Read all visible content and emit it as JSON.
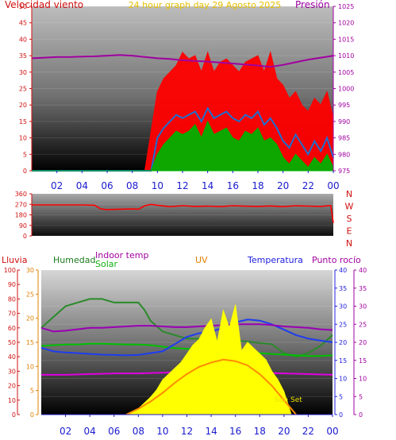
{
  "title": "24 hour graph day   29 Agosto 2025",
  "chart_data": [
    {
      "type": "line",
      "id": "wind-pressure",
      "xlabel": "",
      "x_ticks": [
        "02",
        "04",
        "06",
        "08",
        "10",
        "12",
        "14",
        "16",
        "18",
        "20",
        "22",
        "00"
      ],
      "left_axis": {
        "label": "Velocidad viento",
        "ylim": [
          0,
          50
        ],
        "ticks": [
          0,
          5,
          10,
          15,
          20,
          25,
          30,
          35,
          40,
          45,
          50
        ]
      },
      "right_axis": {
        "label": "Presión",
        "ylim": [
          975,
          1025
        ],
        "ticks": [
          975,
          980,
          985,
          990,
          995,
          1000,
          1005,
          1010,
          1015,
          1020,
          1025
        ]
      },
      "series": [
        {
          "name": "",
          "color": "#ff0000",
          "axis": "left",
          "kind": "gust",
          "x": [
            0,
            8,
            9,
            9.5,
            10,
            10.5,
            11,
            11.5,
            12,
            12.5,
            13,
            13.5,
            14,
            14.5,
            15,
            15.5,
            16,
            16.5,
            17,
            17.5,
            18,
            18.5,
            19,
            19.5,
            20,
            20.5,
            21,
            21.5,
            22,
            22.5,
            23,
            23.5,
            24
          ],
          "values": [
            0,
            0,
            0,
            12,
            24,
            28,
            30,
            32,
            36,
            34,
            35,
            30,
            36,
            30,
            33,
            34,
            32,
            30,
            33,
            34,
            35,
            30,
            36,
            28,
            26,
            22,
            24,
            20,
            18,
            22,
            20,
            24,
            16
          ]
        },
        {
          "name": "",
          "color": "#1e6fd0",
          "axis": "left",
          "kind": "line",
          "x": [
            0,
            9.5,
            10,
            10.5,
            11,
            11.5,
            12,
            12.5,
            13,
            13.5,
            14,
            14.5,
            15,
            15.5,
            16,
            16.5,
            17,
            17.5,
            18,
            18.5,
            19,
            19.5,
            20,
            20.5,
            21,
            21.5,
            22,
            22.5,
            23,
            23.5,
            24
          ],
          "values": [
            0,
            0,
            10,
            13,
            15,
            17,
            16,
            17,
            18,
            15,
            19,
            16,
            17,
            18,
            16,
            15,
            17,
            16,
            18,
            14,
            16,
            13,
            9,
            7,
            11,
            8,
            5,
            9,
            6,
            10,
            4
          ]
        },
        {
          "name": "",
          "color": "#00b000",
          "axis": "left",
          "kind": "fill",
          "x": [
            0,
            9.5,
            10,
            10.5,
            11,
            11.5,
            12,
            12.5,
            13,
            13.5,
            14,
            14.5,
            15,
            15.5,
            16,
            16.5,
            17,
            17.5,
            18,
            18.5,
            19,
            19.5,
            20,
            20.5,
            21,
            21.5,
            22,
            22.5,
            23,
            23.5,
            24
          ],
          "values": [
            0,
            0,
            5,
            8,
            10,
            12,
            11,
            12,
            14,
            10,
            15,
            11,
            12,
            13,
            10,
            9,
            12,
            11,
            13,
            9,
            10,
            8,
            4,
            2,
            5,
            3,
            1,
            4,
            2,
            5,
            1
          ]
        },
        {
          "name": "",
          "color": "#a000a0",
          "axis": "right",
          "kind": "line",
          "x": [
            0,
            1,
            2,
            3,
            4,
            5,
            6,
            7,
            8,
            9,
            10,
            11,
            12,
            13,
            14,
            15,
            16,
            17,
            18,
            19,
            20,
            21,
            22,
            23,
            24
          ],
          "values": [
            1009.2,
            1009.4,
            1009.6,
            1009.6,
            1009.7,
            1009.8,
            1010.0,
            1010.2,
            1010.0,
            1009.6,
            1009.2,
            1009.0,
            1008.6,
            1008.4,
            1008.2,
            1007.9,
            1007.6,
            1007.3,
            1007.0,
            1006.6,
            1007.2,
            1008.0,
            1008.8,
            1009.4,
            1010.0
          ]
        }
      ]
    },
    {
      "type": "line",
      "id": "wind-direction",
      "xlabel": "",
      "left_axis": {
        "label": "",
        "ylim": [
          0,
          360
        ],
        "ticks": [
          0,
          90,
          180,
          270,
          360
        ]
      },
      "right_labels": [
        "N",
        "W",
        "S",
        "E",
        "N"
      ],
      "series": [
        {
          "name": "",
          "color": "#ff0000",
          "x": [
            0,
            1,
            2,
            3,
            4,
            5,
            5.5,
            6,
            7,
            8,
            8.5,
            9,
            9.5,
            10,
            11,
            12,
            13,
            14,
            15,
            16,
            17,
            18,
            19,
            20,
            21,
            22,
            23,
            23.8,
            24
          ],
          "values": [
            265,
            265,
            265,
            265,
            265,
            262,
            230,
            225,
            228,
            230,
            228,
            258,
            270,
            262,
            250,
            258,
            252,
            255,
            250,
            258,
            254,
            252,
            256,
            250,
            258,
            255,
            252,
            260,
            110
          ]
        }
      ]
    },
    {
      "type": "line",
      "id": "temp-humidity-solar",
      "xlabel": "",
      "x_ticks": [
        "02",
        "04",
        "06",
        "08",
        "10",
        "12",
        "14",
        "16",
        "18",
        "20",
        "22",
        "00"
      ],
      "axes": {
        "lluvia": {
          "label": "Lluvia",
          "ylim": [
            0,
            100
          ],
          "ticks": [
            0,
            10,
            20,
            30,
            40,
            50,
            60,
            70,
            80,
            90,
            100
          ]
        },
        "humedad": {
          "label": "Humedad",
          "ylim": [
            0,
            30
          ],
          "ticks": [
            0,
            5,
            10,
            15,
            20,
            25,
            30
          ]
        },
        "uv": {
          "label": "UV",
          "ylim": [
            0,
            40
          ],
          "ticks": []
        },
        "temperatura": {
          "label": "Temperatura",
          "ylim": [
            0,
            40
          ],
          "ticks": [
            0,
            5,
            10,
            15,
            20,
            25,
            30,
            35,
            40
          ]
        },
        "punto_rocio": {
          "label": "Punto rocío",
          "ylim": [
            0,
            40
          ],
          "ticks": [
            0,
            5,
            10,
            15,
            20,
            25,
            30,
            35,
            40
          ]
        }
      },
      "legend_extra": [
        "Indoor temp",
        "Solar"
      ],
      "annotations": [
        {
          "text": "Sun Set",
          "x": 20.5
        }
      ],
      "series": [
        {
          "name": "Humedad",
          "color": "#2a8a2a",
          "axis": "temperatura",
          "x": [
            0,
            1,
            2,
            3,
            4,
            5,
            6,
            7,
            8,
            8.5,
            9,
            10,
            11,
            12,
            13,
            14,
            15,
            16,
            17,
            18,
            19,
            20,
            21,
            22,
            23,
            24
          ],
          "values": [
            24,
            27,
            30,
            31,
            32,
            32,
            31,
            31,
            31,
            29,
            26,
            23,
            22,
            21,
            21,
            20.5,
            20.5,
            20.5,
            20.2,
            19.8,
            19.5,
            17,
            16,
            17,
            19,
            22
          ]
        },
        {
          "name": "Indoor temp",
          "color": "#00c000",
          "axis": "temperatura",
          "x": [
            0,
            1,
            2,
            3,
            4,
            5,
            6,
            7,
            8,
            9,
            10,
            11,
            12,
            13,
            14,
            15,
            16,
            17,
            18,
            19,
            20,
            21,
            22,
            23,
            24
          ],
          "values": [
            19,
            19.2,
            19.4,
            19.4,
            19.6,
            19.6,
            19.5,
            19.4,
            19.4,
            19.2,
            18.8,
            18.4,
            18.2,
            18.0,
            17.8,
            17.6,
            17.4,
            17.2,
            17.0,
            16.8,
            16.6,
            16.4,
            16.2,
            16.2,
            16.4
          ]
        },
        {
          "name": "Temperatura",
          "color": "#1e3cf0",
          "axis": "temperatura",
          "x": [
            0,
            1,
            2,
            3,
            4,
            5,
            6,
            7,
            8,
            9,
            10,
            11,
            12,
            13,
            14,
            15,
            16,
            17,
            18,
            19,
            20,
            21,
            22,
            23,
            24
          ],
          "values": [
            18.5,
            17.5,
            17.2,
            17.0,
            16.8,
            16.6,
            16.5,
            16.4,
            16.5,
            17.0,
            17.5,
            19.5,
            21.5,
            22.5,
            23.0,
            24.0,
            25.5,
            26.3,
            26.0,
            25.0,
            23.5,
            22.0,
            21.0,
            20.5,
            20.0
          ]
        },
        {
          "name": "Punto rocío",
          "color": "#9a00b4",
          "axis": "punto_rocio",
          "x": [
            0,
            1,
            2,
            3,
            4,
            5,
            6,
            7,
            8,
            9,
            10,
            11,
            12,
            13,
            14,
            15,
            16,
            17,
            18,
            19,
            20,
            21,
            22,
            23,
            24
          ],
          "values": [
            24,
            23,
            23.2,
            23.6,
            24,
            24,
            24.2,
            24.4,
            24.6,
            24.6,
            24.4,
            24.2,
            24.2,
            24.4,
            24.6,
            24.8,
            25,
            25,
            25,
            24.8,
            24.4,
            24.2,
            24,
            23.6,
            23.4
          ]
        },
        {
          "name": "Solar",
          "color": "#e000e0",
          "axis": "punto_rocio",
          "x": [
            0,
            2,
            4,
            6,
            8,
            10,
            12,
            14,
            16,
            18,
            20,
            22,
            24
          ],
          "values": [
            11,
            11,
            11.2,
            11.4,
            11.4,
            11.6,
            11.8,
            12.0,
            11.8,
            11.6,
            11.4,
            11.2,
            11.0
          ]
        },
        {
          "name": "",
          "color": "#ffff00",
          "axis": "lluvia",
          "kind": "fill",
          "x": [
            0,
            7.2,
            8,
            8.5,
            9,
            9.5,
            10,
            10.5,
            11,
            11.5,
            12,
            12.5,
            13,
            13.5,
            14,
            14.5,
            15,
            15.5,
            16,
            16.5,
            17,
            17.5,
            18,
            18.5,
            19,
            19.5,
            20,
            20.3,
            20.6,
            24
          ],
          "values": [
            0,
            0,
            4,
            8,
            12,
            17,
            24,
            28,
            32,
            36,
            42,
            48,
            52,
            60,
            66,
            50,
            72,
            60,
            76,
            44,
            50,
            46,
            42,
            38,
            30,
            24,
            16,
            8,
            0,
            0
          ]
        },
        {
          "name": "",
          "color": "#ff8c00",
          "axis": "lluvia",
          "kind": "line",
          "x": [
            7,
            8,
            9,
            10,
            11,
            12,
            13,
            14,
            15,
            16,
            17,
            18,
            19,
            20,
            21
          ],
          "values": [
            0,
            4,
            9,
            15,
            22,
            28,
            33,
            36,
            38,
            37,
            34,
            28,
            20,
            10,
            0
          ]
        }
      ]
    }
  ]
}
